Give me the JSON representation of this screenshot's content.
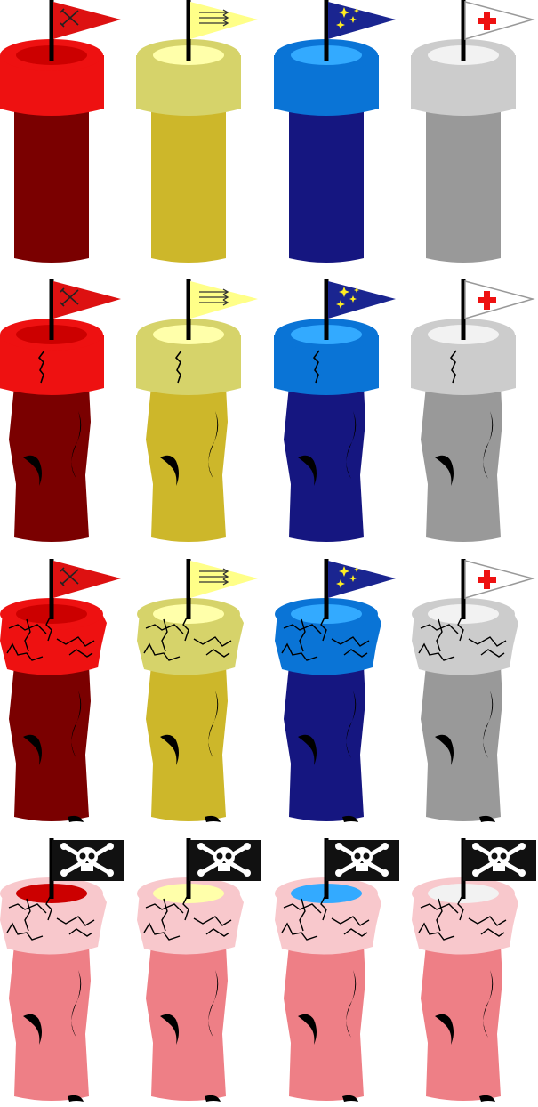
{
  "sheet": {
    "columns": [
      "red",
      "yellow",
      "blue",
      "white"
    ],
    "rows": [
      "intact",
      "cracked",
      "heavily-damaged",
      "ruined"
    ]
  },
  "palettes": {
    "red": {
      "cap": "#ee1111",
      "cap_inner": "#cc0000",
      "body": "#7a0000",
      "flag": "#dd1111",
      "flag_mark": "#222222",
      "flag_icon": "crossed-swords-icon"
    },
    "yellow": {
      "cap": "#d6d36a",
      "cap_inner": "#ffffaa",
      "body": "#cdb72a",
      "flag": "#ffff88",
      "flag_mark": "#333333",
      "flag_icon": "arrows-icon"
    },
    "blue": {
      "cap": "#0a74d6",
      "cap_inner": "#33aaff",
      "body": "#151680",
      "flag": "#1a2590",
      "flag_mark": "#ffee22",
      "flag_icon": "stars-icon"
    },
    "white": {
      "cap": "#cccccc",
      "cap_inner": "#f2f2f2",
      "body": "#999999",
      "flag": "#ffffff",
      "flag_mark": "#ee1111",
      "flag_icon": "red-cross-icon"
    }
  },
  "ruined_palette": {
    "cap": "#f8c8cc",
    "body": "#ee7f86",
    "flag": "#111111",
    "flag_icon": "skull-and-crossbones-icon"
  }
}
